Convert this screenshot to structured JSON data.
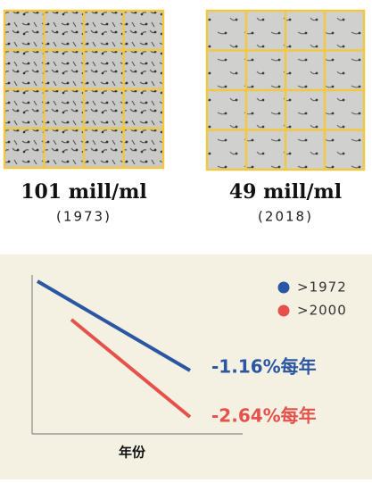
{
  "samples": [
    {
      "count": "101 mill/ml",
      "year": "(1973)"
    },
    {
      "count": "49 mill/ml",
      "year": "(2018)"
    }
  ],
  "trend": {
    "x_label": "年份",
    "series": [
      {
        "name": ">1972",
        "color": "#2a56a3",
        "annotation": "-1.16%每年"
      },
      {
        "name": ">2000",
        "color": "#e5524b",
        "annotation": "-2.64%每年"
      }
    ]
  }
}
